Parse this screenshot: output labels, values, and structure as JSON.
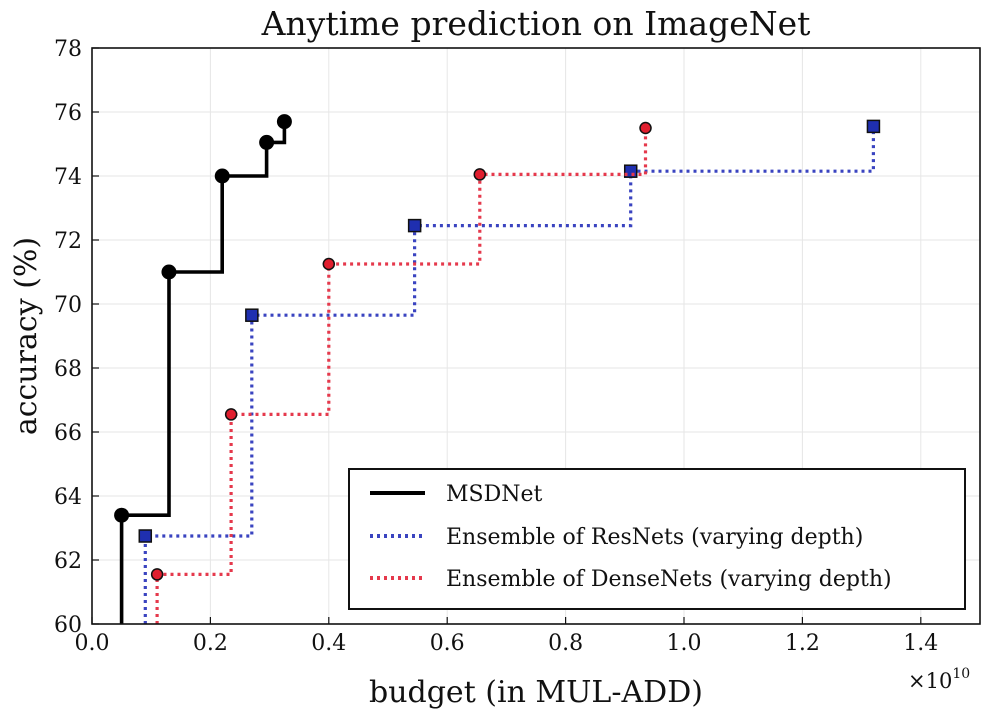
{
  "chart_data": {
    "type": "line",
    "title": "Anytime prediction on ImageNet",
    "xlabel": "budget (in MUL-ADD)",
    "ylabel": "accuracy (%)",
    "x_exponent_label": "×10",
    "x_exponent_power": "10",
    "xlim": [
      0.0,
      1.5
    ],
    "ylim": [
      60,
      78
    ],
    "xticks": [
      "0.0",
      "0.2",
      "0.4",
      "0.6",
      "0.8",
      "1.0",
      "1.2",
      "1.4"
    ],
    "yticks": [
      "60",
      "62",
      "64",
      "66",
      "68",
      "70",
      "72",
      "74",
      "76",
      "78"
    ],
    "legend_position": "lower-right",
    "series": [
      {
        "name": "MSDNet",
        "style": "solid",
        "marker": "circle",
        "color": "#000000",
        "x": [
          0.05,
          0.13,
          0.22,
          0.295,
          0.325
        ],
        "y": [
          63.4,
          71.0,
          74.0,
          75.05,
          75.7
        ]
      },
      {
        "name": "Ensemble of ResNets (varying depth)",
        "style": "dotted",
        "marker": "square",
        "color": "#3a44c0",
        "x": [
          0.09,
          0.27,
          0.545,
          0.91,
          1.32
        ],
        "y": [
          62.75,
          69.65,
          72.45,
          74.15,
          75.55
        ]
      },
      {
        "name": "Ensemble of DenseNets (varying depth)",
        "style": "dotted",
        "marker": "circle",
        "color": "#e5394c",
        "x": [
          0.11,
          0.235,
          0.4,
          0.655,
          0.935
        ],
        "y": [
          61.55,
          66.55,
          71.25,
          74.05,
          75.5
        ]
      }
    ]
  }
}
